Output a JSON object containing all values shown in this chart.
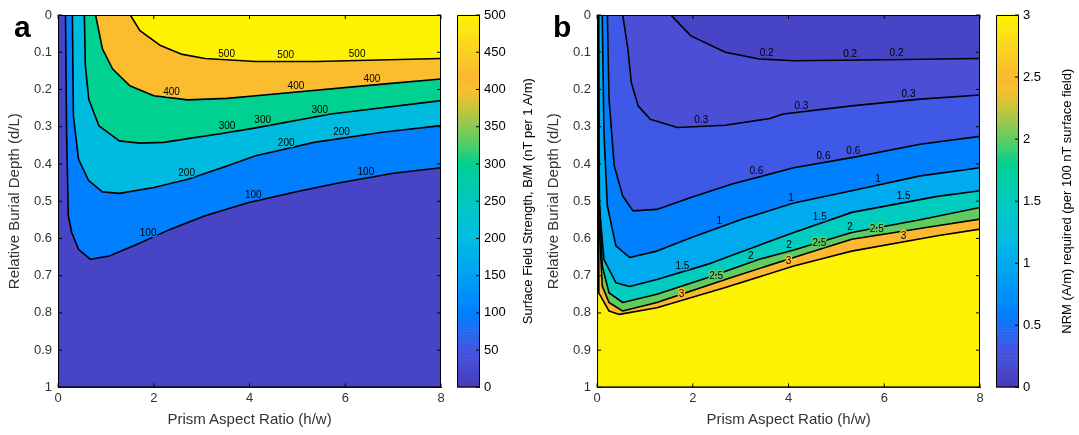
{
  "chart_data": [
    {
      "type": "area",
      "title": "a",
      "xlabel": "Prism Aspect Ratio (h/w)",
      "ylabel": "Relative Burial Depth (d/L)",
      "clabel": "Surface Field Strength, B/M (nT per 1 A/m)",
      "xlim": [
        0,
        8
      ],
      "xticks": [
        0,
        2,
        4,
        6,
        8
      ],
      "ylim": [
        1,
        0
      ],
      "yticks": [
        0,
        0.1,
        0.2,
        0.3,
        0.4,
        0.5,
        0.6,
        0.7,
        0.8,
        0.9,
        1
      ],
      "clim": [
        0,
        500
      ],
      "cticks": [
        0,
        50,
        100,
        150,
        200,
        250,
        300,
        350,
        400,
        450,
        500
      ],
      "marker": "none",
      "series": [
        {
          "name": "100",
          "color": "#0080ff",
          "x": [
            0.155,
            0.178,
            0.214,
            0.285,
            0.427,
            0.677,
            1.07,
            1.64,
            2.35,
            3.07,
            4,
            5,
            5.83,
            7,
            8
          ],
          "values": [
            0,
            0.315,
            0.539,
            0.584,
            0.629,
            0.656,
            0.647,
            0.616,
            0.575,
            0.539,
            0.503,
            0.474,
            0.452,
            0.425,
            0.41
          ]
        },
        {
          "name": "200",
          "color": "#00bbe0",
          "x": [
            0.299,
            0.32,
            0.427,
            0.641,
            0.926,
            1.28,
            2,
            2.71,
            3.42,
            4.13,
            5.35,
            6.77,
            8
          ],
          "values": [
            0,
            0.27,
            0.387,
            0.445,
            0.475,
            0.479,
            0.463,
            0.441,
            0.41,
            0.378,
            0.342,
            0.315,
            0.297
          ]
        },
        {
          "name": "300",
          "color": "#00d090",
          "x": [
            0.549,
            0.57,
            0.641,
            0.855,
            1.28,
            1.71,
            2.21,
            2.71,
            3.42,
            4.13,
            5.7,
            8
          ],
          "values": [
            0,
            0.136,
            0.226,
            0.298,
            0.338,
            0.344,
            0.342,
            0.332,
            0.318,
            0.303,
            0.266,
            0.23
          ]
        },
        {
          "name": "400",
          "color": "#fbbd2e",
          "x": [
            0.784,
            0.927,
            1.14,
            1.5,
            2,
            2.71,
            3.53,
            4.13,
            6.84,
            8
          ],
          "values": [
            0,
            0.091,
            0.145,
            0.19,
            0.217,
            0.228,
            0.224,
            0.217,
            0.185,
            0.172
          ]
        },
        {
          "name": "500",
          "color": "#fff200",
          "x": [
            1.51,
            1.71,
            2.14,
            2.57,
            3.07,
            4.13,
            5.4,
            8
          ],
          "values": [
            0,
            0.042,
            0.082,
            0.105,
            0.117,
            0.125,
            0.125,
            0.117
          ]
        }
      ]
    },
    {
      "type": "area",
      "title": "b",
      "xlabel": "Prism Aspect Ratio (h/w)",
      "ylabel": "Relative Burial Depth (d/L)",
      "clabel": "NRM (A/m) required (per 100 nT surface field)",
      "xlim": [
        0,
        8
      ],
      "xticks": [
        0,
        2,
        4,
        6,
        8
      ],
      "ylim": [
        1,
        0
      ],
      "yticks": [
        0,
        0.1,
        0.2,
        0.3,
        0.4,
        0.5,
        0.6,
        0.7,
        0.8,
        0.9,
        1
      ],
      "clim": [
        0,
        3
      ],
      "cticks": [
        0,
        0.5,
        1,
        1.5,
        2,
        2.5,
        3
      ],
      "marker": "none",
      "series": [
        {
          "name": "3",
          "color": "#fbb830",
          "x": [
            0.005,
            0.025,
            0.036,
            0.25,
            0.465,
            1.25,
            2.68,
            4.11,
            5.32,
            7.11,
            8
          ],
          "values": [
            0,
            0.6,
            0.746,
            0.795,
            0.804,
            0.786,
            0.732,
            0.674,
            0.634,
            0.593,
            0.575
          ]
        },
        {
          "name": "2.5",
          "color": "#60cc60",
          "x": [
            0.012,
            0.04,
            0.108,
            0.25,
            0.536,
            1.25,
            2.68,
            4.11,
            5.32,
            7.11,
            8
          ],
          "values": [
            0,
            0.55,
            0.728,
            0.772,
            0.795,
            0.772,
            0.71,
            0.651,
            0.602,
            0.566,
            0.548
          ]
        },
        {
          "name": "2",
          "color": "#00ccc0",
          "x": [
            0.02,
            0.05,
            0.108,
            0.25,
            0.536,
            1.25,
            2.32,
            3.39,
            4.11,
            5.32,
            6.75,
            8
          ],
          "values": [
            0,
            0.5,
            0.674,
            0.746,
            0.772,
            0.75,
            0.705,
            0.656,
            0.631,
            0.584,
            0.55,
            0.517
          ]
        },
        {
          "name": "1.5",
          "color": "#00aaee",
          "x": [
            0.03,
            0.036,
            0.143,
            0.393,
            0.679,
            1.25,
            2.32,
            3.39,
            4.11,
            5.32,
            7.11,
            8
          ],
          "values": [
            0,
            0.495,
            0.656,
            0.719,
            0.729,
            0.71,
            0.669,
            0.618,
            0.584,
            0.53,
            0.487,
            0.472
          ]
        },
        {
          "name": "1",
          "color": "#0080ff",
          "x": [
            0.108,
            0.143,
            0.215,
            0.393,
            0.679,
            1.25,
            1.96,
            3.04,
            4.11,
            5.32,
            6.75,
            8
          ],
          "values": [
            0,
            0.315,
            0.513,
            0.62,
            0.651,
            0.634,
            0.598,
            0.548,
            0.505,
            0.472,
            0.432,
            0.41
          ]
        },
        {
          "name": "0.6",
          "color": "#4058e6",
          "x": [
            0.215,
            0.25,
            0.358,
            0.536,
            0.75,
            1.25,
            1.96,
            2.82,
            4.11,
            5.32,
            6.75,
            8
          ],
          "values": [
            0,
            0.226,
            0.405,
            0.486,
            0.526,
            0.522,
            0.49,
            0.454,
            0.41,
            0.383,
            0.347,
            0.326
          ]
        },
        {
          "name": "0.3",
          "color": "#4a4fd6",
          "x": [
            0.536,
            0.643,
            0.715,
            0.858,
            1.11,
            1.68,
            2.68,
            3.61,
            3.89,
            5.32,
            6.75,
            8
          ],
          "values": [
            0,
            0.091,
            0.181,
            0.244,
            0.28,
            0.302,
            0.296,
            0.278,
            0.266,
            0.244,
            0.226,
            0.215
          ]
        },
        {
          "name": "0.2",
          "color": "#4844c6",
          "x": [
            1.54,
            1.96,
            2.68,
            3.39,
            4.11,
            6.04,
            8
          ],
          "values": [
            0,
            0.056,
            0.1,
            0.118,
            0.123,
            0.12,
            0.117
          ]
        }
      ]
    }
  ]
}
